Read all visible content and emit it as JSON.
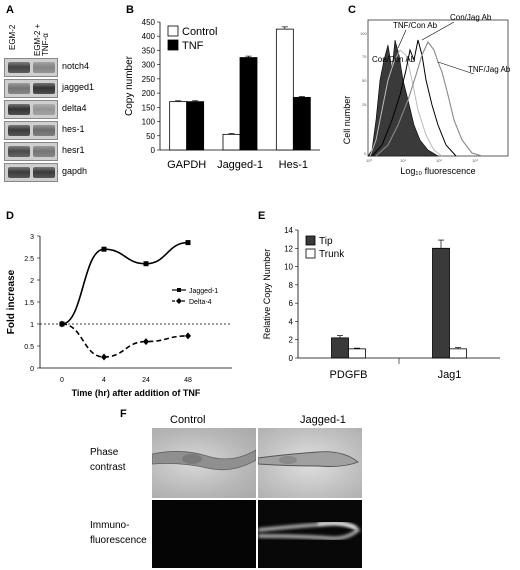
{
  "panels": {
    "A": {
      "letter": "A",
      "lane_labels": [
        "EGM-2",
        "EGM-2 + TNF-α"
      ],
      "genes": [
        "notch4",
        "jagged1",
        "delta4",
        "hes-1",
        "hesr1",
        "gapdh"
      ],
      "band_intensity": [
        [
          0.85,
          0.45
        ],
        [
          0.55,
          0.95
        ],
        [
          0.95,
          0.35
        ],
        [
          0.9,
          0.6
        ],
        [
          0.8,
          0.55
        ],
        [
          0.9,
          0.9
        ]
      ]
    },
    "B": {
      "letter": "B",
      "legend": [
        "Control",
        "TNF"
      ]
    },
    "C": {
      "letter": "C",
      "ylabel": "Cell number",
      "xlabel": "Log₁₀ fluorescence",
      "annotations": [
        "TNF/Con Ab",
        "Con/Jag Ab",
        "Con/Con Ab",
        "TNF/Jag Ab"
      ]
    },
    "D": {
      "letter": "D",
      "legend": [
        "Jagged-1",
        "Delta-4"
      ]
    },
    "E": {
      "letter": "E",
      "legend": [
        "Tip",
        "Trunk"
      ]
    },
    "F": {
      "letter": "F",
      "col_labels": [
        "Control",
        "Jagged-1"
      ],
      "row_labels": [
        "Phase contrast",
        "Immuno-fluorescence"
      ]
    }
  },
  "chart_data": [
    {
      "panel": "B",
      "type": "bar",
      "categories": [
        "GAPDH",
        "Jagged-1",
        "Hes-1"
      ],
      "series": [
        {
          "name": "Control",
          "values": [
            170,
            55,
            425
          ],
          "errors": [
            3,
            3,
            8
          ],
          "color": "#ffffff"
        },
        {
          "name": "TNF",
          "values": [
            170,
            325,
            185
          ],
          "errors": [
            3,
            5,
            3
          ],
          "color": "#000000"
        }
      ],
      "ylabel": "Copy number",
      "ylim": [
        0,
        450
      ],
      "yticks": [
        0,
        50,
        100,
        150,
        200,
        250,
        300,
        350,
        400,
        450
      ],
      "legend_position": "top-left"
    },
    {
      "panel": "D",
      "type": "line",
      "x": [
        0,
        4,
        24,
        48
      ],
      "xtick_labels": [
        "0",
        "4",
        "24",
        "48"
      ],
      "series": [
        {
          "name": "Jagged-1",
          "values": [
            1,
            2.7,
            2.37,
            2.85
          ],
          "style": "solid",
          "marker": "square"
        },
        {
          "name": "Delta-4",
          "values": [
            1,
            0.25,
            0.6,
            0.73
          ],
          "style": "dashed",
          "marker": "diamond"
        }
      ],
      "reference_line": 1,
      "xlabel": "Time (hr) after addition of TNF",
      "ylabel": "Fold increase",
      "ylim": [
        0,
        3
      ],
      "yticks": [
        0,
        0.5,
        1,
        1.5,
        2,
        2.5,
        3
      ],
      "ytick_labels": [
        "0",
        "0.5",
        "1",
        "1.5",
        "2",
        "2.5",
        "3"
      ],
      "legend_position": "right"
    },
    {
      "panel": "E",
      "type": "bar",
      "categories": [
        "PDGFB",
        "Jag1"
      ],
      "series": [
        {
          "name": "Tip",
          "values": [
            2.2,
            12
          ],
          "errors": [
            0.25,
            0.9
          ],
          "color": "#3a3a3a"
        },
        {
          "name": "Trunk",
          "values": [
            1,
            1
          ],
          "errors": [
            0.08,
            0.15
          ],
          "color": "#ffffff"
        }
      ],
      "ylabel": "Relative Copy Number",
      "ylim": [
        0,
        14
      ],
      "yticks": [
        0,
        2,
        4,
        6,
        8,
        10,
        12,
        14
      ],
      "legend_position": "top-left"
    }
  ]
}
